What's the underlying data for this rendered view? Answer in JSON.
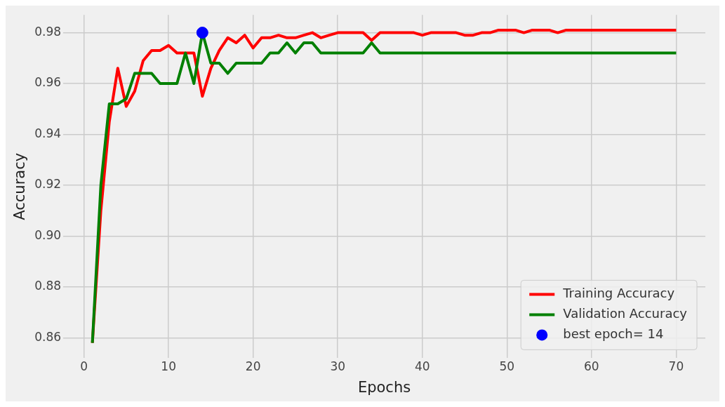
{
  "chart_data": {
    "type": "line",
    "xlabel": "Epochs",
    "ylabel": "Accuracy",
    "xlim": [
      -2.45,
      73.45
    ],
    "ylim": [
      0.852,
      0.987
    ],
    "xticks": [
      0,
      10,
      20,
      30,
      40,
      50,
      60,
      70
    ],
    "yticks": [
      {
        "value": 0.86,
        "label": "0.86"
      },
      {
        "value": 0.88,
        "label": "0.88"
      },
      {
        "value": 0.9,
        "label": "0.90"
      },
      {
        "value": 0.92,
        "label": "0.92"
      },
      {
        "value": 0.94,
        "label": "0.94"
      },
      {
        "value": 0.96,
        "label": "0.96"
      },
      {
        "value": 0.98,
        "label": "0.98"
      }
    ],
    "grid": true,
    "legend": "bottom right",
    "line_style": "solid",
    "marker": "none",
    "series": [
      {
        "name": "Training Accuracy",
        "color": "#ff0000",
        "x": [
          1,
          2,
          3,
          4,
          5,
          6,
          7,
          8,
          9,
          10,
          11,
          12,
          13,
          14,
          15,
          16,
          17,
          18,
          19,
          20,
          21,
          22,
          23,
          24,
          25,
          26,
          27,
          28,
          29,
          30,
          31,
          32,
          33,
          34,
          35,
          36,
          37,
          38,
          39,
          40,
          41,
          42,
          43,
          44,
          45,
          46,
          47,
          48,
          49,
          50,
          51,
          52,
          53,
          54,
          55,
          56,
          57,
          58,
          59,
          60,
          61,
          62,
          63,
          64,
          65,
          66,
          67,
          68,
          69,
          70
        ],
        "values": [
          0.858,
          0.91,
          0.945,
          0.966,
          0.951,
          0.957,
          0.969,
          0.973,
          0.973,
          0.975,
          0.972,
          0.972,
          0.972,
          0.955,
          0.966,
          0.973,
          0.978,
          0.976,
          0.979,
          0.974,
          0.978,
          0.978,
          0.979,
          0.978,
          0.978,
          0.979,
          0.98,
          0.978,
          0.979,
          0.98,
          0.98,
          0.98,
          0.98,
          0.977,
          0.98,
          0.98,
          0.98,
          0.98,
          0.98,
          0.979,
          0.98,
          0.98,
          0.98,
          0.98,
          0.979,
          0.979,
          0.98,
          0.98,
          0.981,
          0.981,
          0.981,
          0.98,
          0.981,
          0.981,
          0.981,
          0.98,
          0.981,
          0.981,
          0.981,
          0.981,
          0.981,
          0.981,
          0.981,
          0.981,
          0.981,
          0.981,
          0.981,
          0.981,
          0.981,
          0.981
        ]
      },
      {
        "name": "Validation Accuracy",
        "color": "#008000",
        "x": [
          1,
          2,
          3,
          4,
          5,
          6,
          7,
          8,
          9,
          10,
          11,
          12,
          13,
          14,
          15,
          16,
          17,
          18,
          19,
          20,
          21,
          22,
          23,
          24,
          25,
          26,
          27,
          28,
          29,
          30,
          31,
          32,
          33,
          34,
          35,
          36,
          37,
          38,
          39,
          40,
          41,
          42,
          43,
          44,
          45,
          46,
          47,
          48,
          49,
          50,
          51,
          52,
          53,
          54,
          55,
          56,
          57,
          58,
          59,
          60,
          61,
          62,
          63,
          64,
          65,
          66,
          67,
          68,
          69,
          70
        ],
        "values": [
          0.858,
          0.92,
          0.952,
          0.952,
          0.954,
          0.964,
          0.964,
          0.964,
          0.96,
          0.96,
          0.96,
          0.972,
          0.96,
          0.98,
          0.968,
          0.968,
          0.964,
          0.968,
          0.968,
          0.968,
          0.968,
          0.972,
          0.972,
          0.976,
          0.972,
          0.976,
          0.976,
          0.972,
          0.972,
          0.972,
          0.972,
          0.972,
          0.972,
          0.976,
          0.972,
          0.972,
          0.972,
          0.972,
          0.972,
          0.972,
          0.972,
          0.972,
          0.972,
          0.972,
          0.972,
          0.972,
          0.972,
          0.972,
          0.972,
          0.972,
          0.972,
          0.972,
          0.972,
          0.972,
          0.972,
          0.972,
          0.972,
          0.972,
          0.972,
          0.972,
          0.972,
          0.972,
          0.972,
          0.972,
          0.972,
          0.972,
          0.972,
          0.972,
          0.972,
          0.972
        ]
      },
      {
        "name": "best epoch= 14",
        "color": "#0000ff",
        "type": "scatter",
        "marker": "circle",
        "x": [
          14
        ],
        "values": [
          0.98
        ]
      }
    ]
  }
}
